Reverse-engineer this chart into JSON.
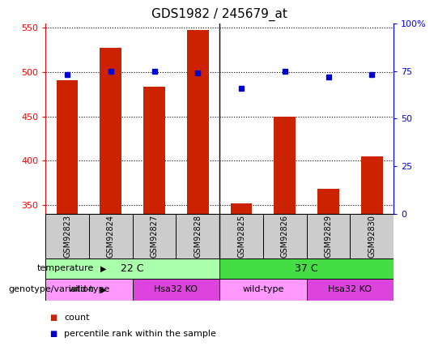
{
  "title": "GDS1982 / 245679_at",
  "samples": [
    "GSM92823",
    "GSM92824",
    "GSM92827",
    "GSM92828",
    "GSM92825",
    "GSM92826",
    "GSM92829",
    "GSM92830"
  ],
  "counts": [
    491,
    527,
    483,
    547,
    352,
    450,
    368,
    405
  ],
  "percentiles": [
    73,
    75,
    75,
    74,
    66,
    75,
    72,
    73
  ],
  "ylim_left": [
    340,
    555
  ],
  "ylim_right": [
    0,
    100
  ],
  "yticks_left": [
    350,
    400,
    450,
    500,
    550
  ],
  "yticks_right": [
    0,
    25,
    50,
    75,
    100
  ],
  "ytick_labels_right": [
    "0",
    "25",
    "50",
    "75",
    "100%"
  ],
  "bar_color": "#cc2200",
  "dot_color": "#0000cc",
  "temperature_labels": [
    "22 C",
    "37 C"
  ],
  "temperature_color_22": "#aaffaa",
  "temperature_color_37": "#44dd44",
  "genotype_labels": [
    "wild-type",
    "Hsa32 KO",
    "wild-type",
    "Hsa32 KO"
  ],
  "genotype_color_wt": "#ff99ff",
  "genotype_color_ko": "#dd44dd",
  "sample_box_color": "#cccccc",
  "legend_count_color": "#cc2200",
  "legend_pct_color": "#0000cc"
}
